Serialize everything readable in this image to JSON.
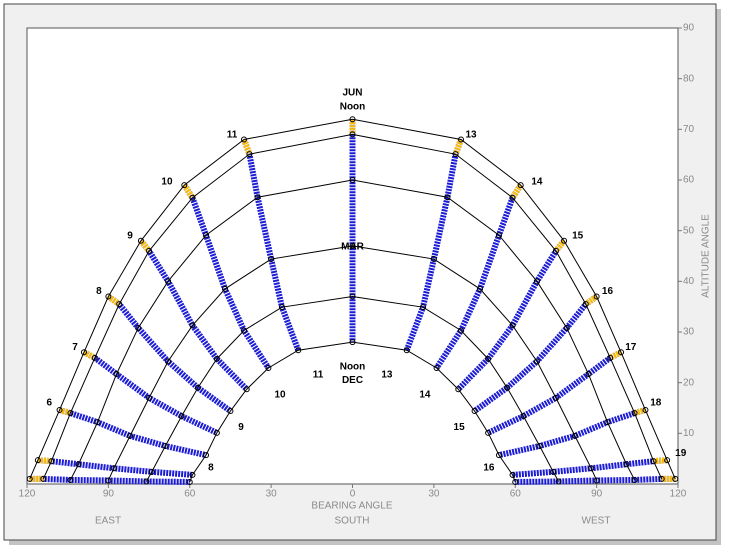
{
  "chart_data": {
    "type": "sunpath",
    "xlabel": "BEARING ANGLE",
    "ylabel": "ALTITUDE ANGLE",
    "direction_labels": [
      "EAST",
      "SOUTH",
      "WEST"
    ],
    "xlim": [
      -120,
      120
    ],
    "ylim": [
      0,
      90
    ],
    "xticks": [
      {
        "value": -120,
        "label": "120"
      },
      {
        "value": -90,
        "label": "90"
      },
      {
        "value": -60,
        "label": "60"
      },
      {
        "value": -30,
        "label": "30"
      },
      0,
      30,
      60,
      90,
      120
    ],
    "yticks": [
      10,
      20,
      30,
      40,
      50,
      60,
      70,
      80,
      90
    ],
    "curve_color": "#000000",
    "hour_line_color": "#1c1cd4",
    "hour_line_top_color": "#ffc000",
    "series": [
      {
        "x": [
          -119,
          -116,
          -108,
          -99,
          -90,
          -78,
          -62,
          -40,
          0,
          40,
          62,
          78,
          90,
          99,
          108,
          116,
          119
        ],
        "y": [
          1,
          4.7,
          14.6,
          26,
          37,
          48,
          59,
          68,
          72,
          68,
          59,
          48,
          37,
          26,
          14.6,
          4.7,
          1
        ]
      },
      {
        "x": [
          -114,
          -111,
          -104,
          -95,
          -86,
          -75,
          -59,
          -38,
          0,
          38,
          59,
          75,
          86,
          95,
          104,
          111,
          114
        ],
        "y": [
          1,
          4.5,
          14,
          24.9,
          35.5,
          46,
          56.5,
          65.1,
          69,
          65.1,
          56.5,
          46,
          35.5,
          24.9,
          14,
          4.5,
          1
        ]
      },
      {
        "x": [
          -104,
          -101,
          -94,
          -87,
          -79,
          -68,
          -54,
          -35,
          0,
          35,
          54,
          68,
          79,
          87,
          94,
          101,
          104
        ],
        "y": [
          0.8,
          3.9,
          12.2,
          21.7,
          30.8,
          40,
          49.1,
          56.6,
          60,
          56.6,
          49.1,
          40,
          30.8,
          21.7,
          12.2,
          3.9,
          0.8
        ]
      },
      {
        "x": [
          -90,
          -88,
          -82,
          -75,
          -68,
          -59,
          -47,
          -30,
          0,
          30,
          47,
          59,
          68,
          75,
          82,
          88,
          90
        ],
        "y": [
          0.7,
          3.1,
          9.5,
          17,
          24.2,
          31.3,
          38.5,
          44.4,
          47,
          44.4,
          38.5,
          31.3,
          24.2,
          17,
          9.5,
          3.1,
          0.7
        ]
      },
      {
        "x": [
          -76,
          -74,
          -69,
          -63,
          -57,
          -50,
          -40,
          -26,
          0,
          26,
          40,
          50,
          57,
          63,
          69,
          74,
          76
        ],
        "y": [
          0.5,
          2.4,
          7.5,
          13.4,
          19,
          24.7,
          30.3,
          34.9,
          37,
          34.9,
          30.3,
          24.7,
          19,
          13.4,
          7.5,
          2.4,
          0.5
        ]
      },
      {
        "x": [
          -60,
          -59,
          -54,
          -50,
          -45,
          -39,
          -31,
          -20,
          0,
          20,
          31,
          39,
          45,
          50,
          54,
          59,
          60
        ],
        "y": [
          0.4,
          1.8,
          5.7,
          10.1,
          14.4,
          18.7,
          22.9,
          26.4,
          28,
          26.4,
          22.9,
          18.7,
          14.4,
          10.1,
          5.7,
          1.8,
          0.4
        ]
      }
    ],
    "annotations": [
      {
        "text": "JUN",
        "x": 0,
        "y": 77.2
      },
      {
        "text": "Noon",
        "x": 0,
        "y": 74.4
      },
      {
        "text": "MAR",
        "x": 0,
        "y": 46.8
      },
      {
        "text": "Noon",
        "x": 0,
        "y": 23.1
      },
      {
        "text": "DEC",
        "x": 0,
        "y": 20.5
      },
      {
        "text": "6",
        "x": -111.8,
        "y": 16
      },
      {
        "text": "7",
        "x": -102.3,
        "y": 27
      },
      {
        "text": "8",
        "x": -93.5,
        "y": 38
      },
      {
        "text": "9",
        "x": -82,
        "y": 49
      },
      {
        "text": "10",
        "x": -68.4,
        "y": 59.6
      },
      {
        "text": "11",
        "x": -44.4,
        "y": 68.9
      },
      {
        "text": "13",
        "x": 43.7,
        "y": 68.9
      },
      {
        "text": "14",
        "x": 68,
        "y": 59.6
      },
      {
        "text": "15",
        "x": 83,
        "y": 49
      },
      {
        "text": "16",
        "x": 94,
        "y": 38
      },
      {
        "text": "17",
        "x": 102.6,
        "y": 27
      },
      {
        "text": "18",
        "x": 111.8,
        "y": 16
      },
      {
        "text": "19",
        "x": 121,
        "y": 6
      },
      {
        "text": "8",
        "x": -52.2,
        "y": 3.2
      },
      {
        "text": "9",
        "x": -41.1,
        "y": 11.2
      },
      {
        "text": "10",
        "x": -26.7,
        "y": 17.6
      },
      {
        "text": "11",
        "x": -12.7,
        "y": 21.5
      },
      {
        "text": "13",
        "x": 12.7,
        "y": 21.5
      },
      {
        "text": "14",
        "x": 26.7,
        "y": 17.6
      },
      {
        "text": "15",
        "x": 39.3,
        "y": 11.2
      },
      {
        "text": "16",
        "x": 50.3,
        "y": 3.2
      }
    ]
  }
}
